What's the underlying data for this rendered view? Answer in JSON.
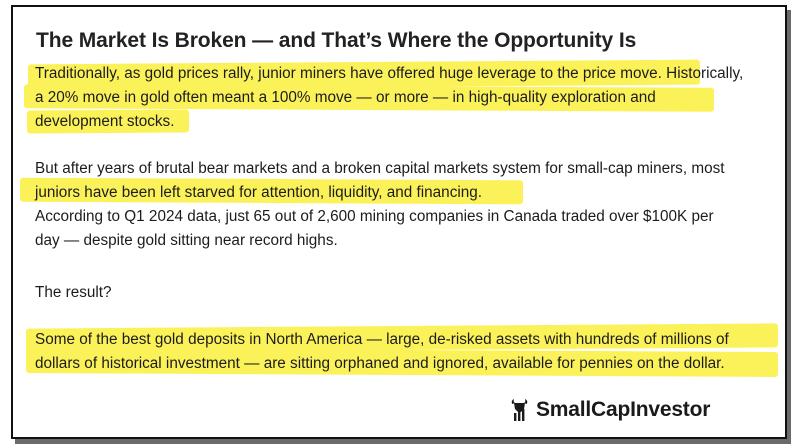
{
  "article": {
    "title": "The Market Is Broken — and That’s Where the Opportunity Is",
    "lines": [
      "Traditionally, as gold prices rally, junior miners have offered huge leverage to the price move. Historically,",
      "a 20% move in gold often meant a 100% move — or more — in high-quality exploration and",
      "development stocks.",
      "But after years of brutal bear markets and a broken capital markets system for small-cap miners, most",
      "juniors have been left starved for attention, liquidity, and financing.",
      "According to Q1 2024 data, just 65 out of 2,600 mining companies in Canada traded over $100K per",
      "day — despite gold sitting near record highs.",
      "The result?",
      "Some of the best gold deposits in North America — large, de-risked assets with hundreds of millions of",
      "dollars of historical investment — are sitting orphaned and ignored, available for pennies on the dollar."
    ]
  },
  "highlight_color": "#fbf25a",
  "logo": {
    "text": "SmallCapInvestor",
    "icon": "bull-chart-icon"
  }
}
